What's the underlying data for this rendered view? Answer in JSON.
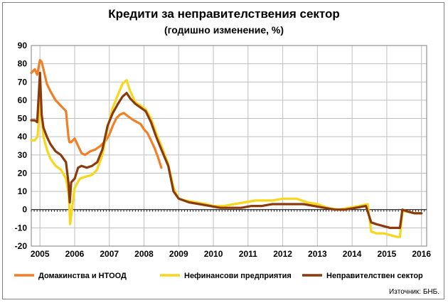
{
  "chart_data": {
    "type": "line",
    "title": "Кредити за неправителствения сектор",
    "subtitle": "(годишно изменение, %)",
    "source": "Източник: БНБ.",
    "xlabel": "",
    "ylabel": "",
    "ylim": [
      -20,
      90
    ],
    "yticks": [
      90,
      80,
      70,
      60,
      50,
      40,
      30,
      20,
      10,
      0,
      -10,
      -20
    ],
    "xlim": [
      2004.75,
      2016.15
    ],
    "xtick_labels": [
      "2005",
      "2006",
      "2007",
      "2008",
      "2009",
      "2010",
      "2011",
      "2012",
      "2013",
      "2014",
      "2015",
      "2016"
    ],
    "grid": true,
    "legend": "bottom",
    "series": [
      {
        "name": "Домакинства и НТООД",
        "color": "#f07f26",
        "x": [
          2004.75,
          2004.85,
          2004.92,
          2005.0,
          2005.05,
          2005.1,
          2005.2,
          2005.3,
          2005.45,
          2005.6,
          2005.75,
          2005.82,
          2005.85,
          2005.9,
          2006.0,
          2006.1,
          2006.2,
          2006.3,
          2006.45,
          2006.6,
          2006.75,
          2006.9,
          2007.0,
          2007.1,
          2007.2,
          2007.3,
          2007.42,
          2007.55,
          2007.7,
          2007.8,
          2007.9,
          2008.0,
          2008.1,
          2008.2,
          2008.3,
          2008.4,
          2008.5
        ],
        "y": [
          75,
          77,
          74,
          82,
          81,
          77,
          69,
          65,
          60,
          57,
          54,
          40,
          37,
          37,
          39,
          35,
          31,
          30,
          32,
          33,
          35,
          38,
          41,
          46,
          50,
          52,
          53,
          51,
          49,
          48,
          47,
          44,
          42,
          38,
          34,
          29,
          23
        ]
      },
      {
        "name": "Нефинансови предприятия",
        "color": "#f8d61c",
        "x": [
          2004.75,
          2004.85,
          2004.93,
          2005.0,
          2005.05,
          2005.1,
          2005.2,
          2005.3,
          2005.45,
          2005.6,
          2005.75,
          2005.83,
          2005.87,
          2005.92,
          2006.0,
          2006.15,
          2006.3,
          2006.5,
          2006.65,
          2006.8,
          2006.95,
          2007.1,
          2007.25,
          2007.38,
          2007.5,
          2007.6,
          2007.75,
          2007.9,
          2008.05,
          2008.2,
          2008.35,
          2008.5,
          2008.7,
          2008.85,
          2009.0,
          2009.2,
          2009.5,
          2009.8,
          2010.0,
          2010.3,
          2010.6,
          2010.9,
          2011.2,
          2011.4,
          2011.7,
          2012.0,
          2012.2,
          2012.4,
          2012.7,
          2013.0,
          2013.3,
          2013.6,
          2013.9,
          2014.2,
          2014.45,
          2014.55,
          2014.7,
          2014.9,
          2015.1,
          2015.3,
          2015.38,
          2015.45,
          2015.6,
          2015.8,
          2016.0
        ],
        "y": [
          38,
          38,
          40,
          59,
          50,
          40,
          33,
          28,
          24,
          22,
          17,
          8,
          -8,
          0,
          12,
          17,
          18,
          19,
          22,
          30,
          45,
          56,
          63,
          69,
          71,
          65,
          59,
          57,
          55,
          50,
          42,
          35,
          25,
          12,
          6,
          5,
          4,
          3,
          2,
          2,
          3,
          4,
          5,
          5,
          5,
          6,
          6,
          6,
          4,
          3,
          1,
          0,
          1,
          2,
          3,
          -12,
          -13,
          -13,
          -14,
          -15,
          -15,
          -1,
          -1,
          -2,
          -2
        ]
      },
      {
        "name": "Неправителствен сектор",
        "color": "#8b3a0c",
        "x": [
          2004.75,
          2004.85,
          2004.92,
          2005.0,
          2005.05,
          2005.1,
          2005.2,
          2005.3,
          2005.45,
          2005.6,
          2005.75,
          2005.82,
          2005.86,
          2005.9,
          2006.0,
          2006.1,
          2006.2,
          2006.35,
          2006.5,
          2006.65,
          2006.8,
          2006.95,
          2007.1,
          2007.25,
          2007.38,
          2007.5,
          2007.6,
          2007.75,
          2007.9,
          2008.05,
          2008.2,
          2008.35,
          2008.5,
          2008.7,
          2008.85,
          2009.0,
          2009.3,
          2009.6,
          2009.9,
          2010.2,
          2010.5,
          2010.8,
          2011.1,
          2011.4,
          2011.7,
          2012.0,
          2012.3,
          2012.6,
          2012.9,
          2013.2,
          2013.5,
          2013.8,
          2014.1,
          2014.4,
          2014.55,
          2014.7,
          2014.9,
          2015.1,
          2015.3,
          2015.38,
          2015.45,
          2015.6,
          2015.8,
          2016.0
        ],
        "y": [
          49,
          49,
          48,
          75,
          52,
          45,
          40,
          36,
          32,
          30,
          26,
          15,
          4,
          15,
          17,
          23,
          24,
          23,
          24,
          26,
          33,
          46,
          53,
          58,
          62,
          64,
          61,
          58,
          56,
          54,
          48,
          40,
          33,
          24,
          10,
          6,
          4,
          3,
          2,
          1,
          1,
          1,
          2,
          2,
          3,
          3,
          3,
          3,
          2,
          1,
          0,
          0,
          1,
          2,
          -7,
          -8,
          -9,
          -10,
          -10,
          -10,
          0,
          -1,
          -2,
          -2
        ]
      }
    ]
  }
}
